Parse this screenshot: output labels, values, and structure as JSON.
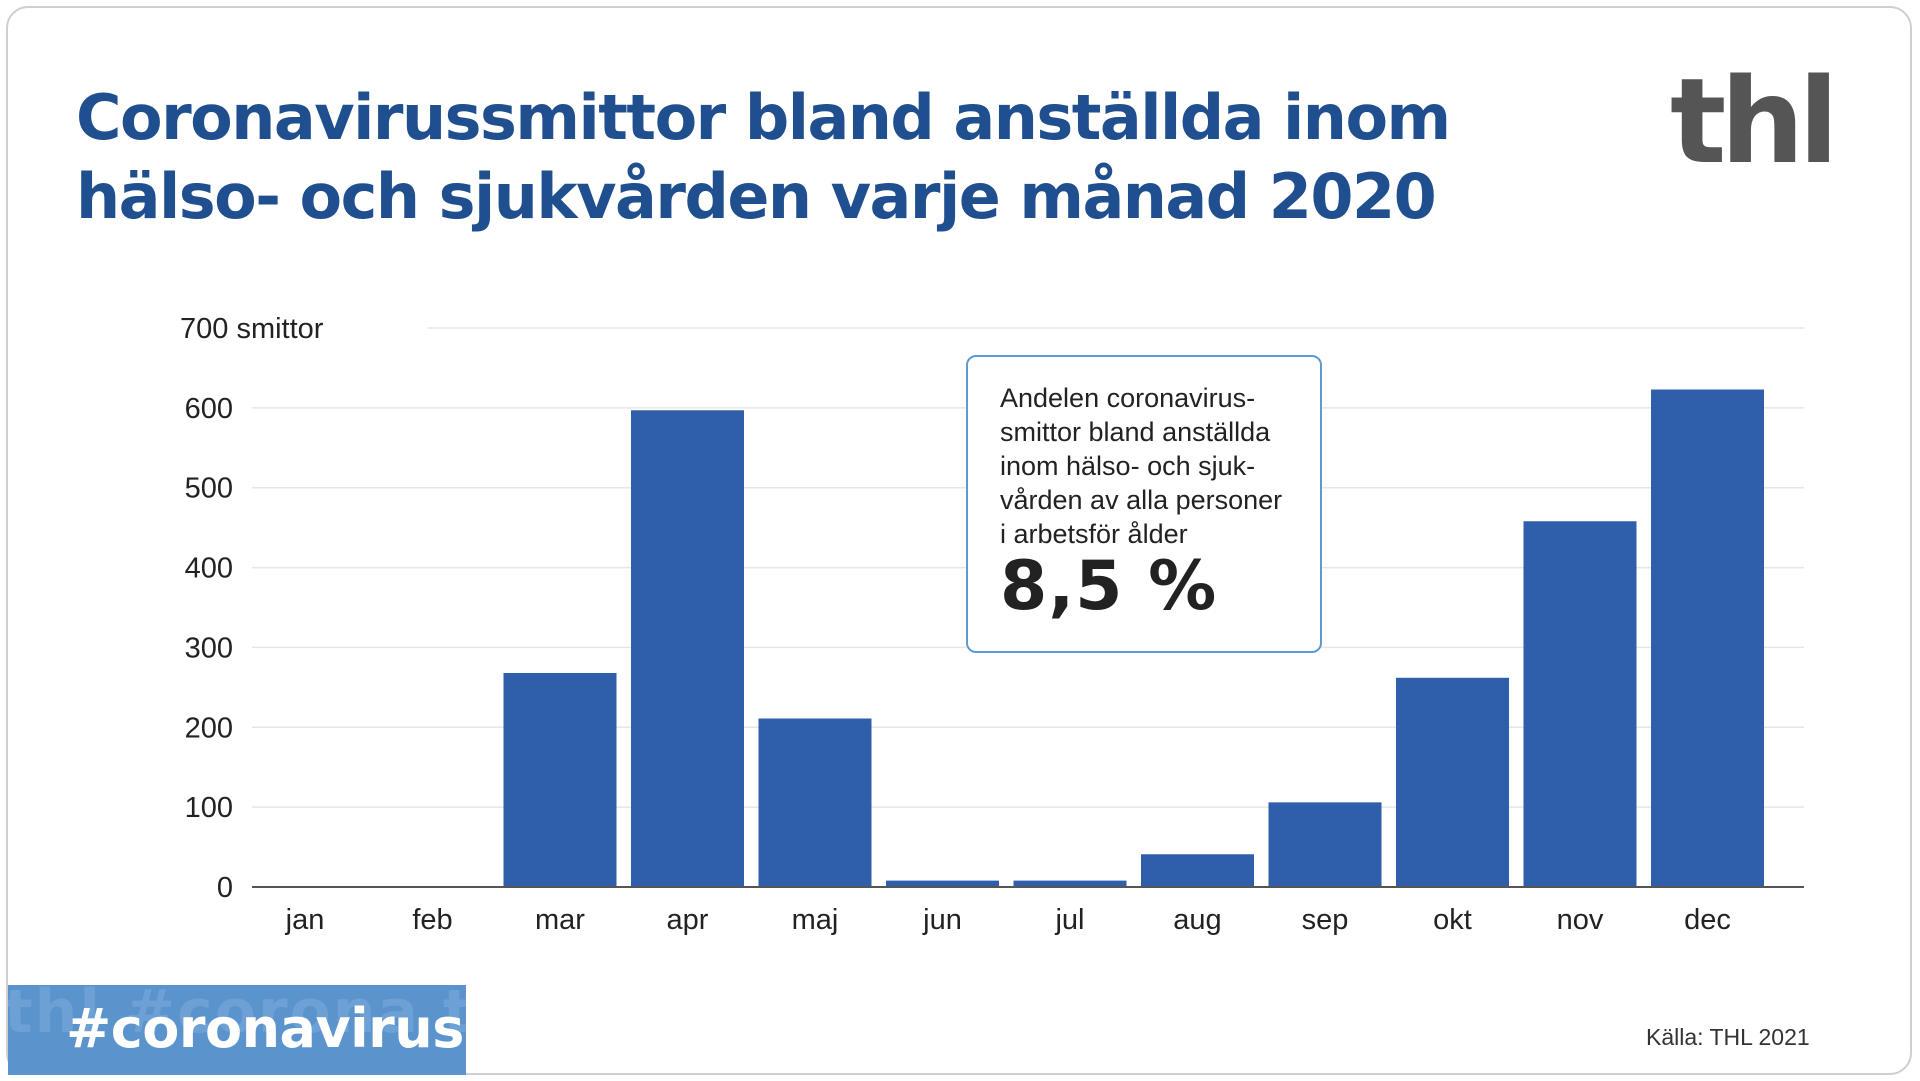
{
  "title_lines": [
    "Coronavirussmittor bland anställda inom",
    "hälso- och sjukvården varje månad 2020"
  ],
  "logo_text": "thl",
  "annotation": {
    "text": "Andelen coronavirus-\nsmittor bland anställda\ninom hälso- och sjuk-\nvården av alla personer\ni arbetsför ålder",
    "value": "8,5 %"
  },
  "tag": {
    "label": "#coronavirus",
    "background_text": "thl #corona thl"
  },
  "source": "Källa: THL 2021",
  "colors": {
    "bar": "#2f5fab",
    "title": "#1f4f8e",
    "gridline": "#e6e6e6",
    "tag_bg": "#5b93cc",
    "annotation_border": "#5b9bd5"
  },
  "chart_data": {
    "type": "bar",
    "title": "Coronavirussmittor bland anställda inom hälso- och sjukvården varje månad 2020",
    "ylabel": "",
    "y_unit": "smittor",
    "ylim": [
      0,
      700
    ],
    "yticks": [
      0,
      100,
      200,
      300,
      400,
      500,
      600,
      700
    ],
    "ytick_labels": [
      "0",
      "100",
      "200",
      "300",
      "400",
      "500",
      "600",
      "700 smittor"
    ],
    "categories": [
      "jan",
      "feb",
      "mar",
      "apr",
      "maj",
      "jun",
      "jul",
      "aug",
      "sep",
      "okt",
      "nov",
      "dec"
    ],
    "values": [
      0,
      0,
      268,
      597,
      211,
      8,
      8,
      41,
      106,
      262,
      458,
      623
    ],
    "grid": true,
    "legend": "none"
  }
}
